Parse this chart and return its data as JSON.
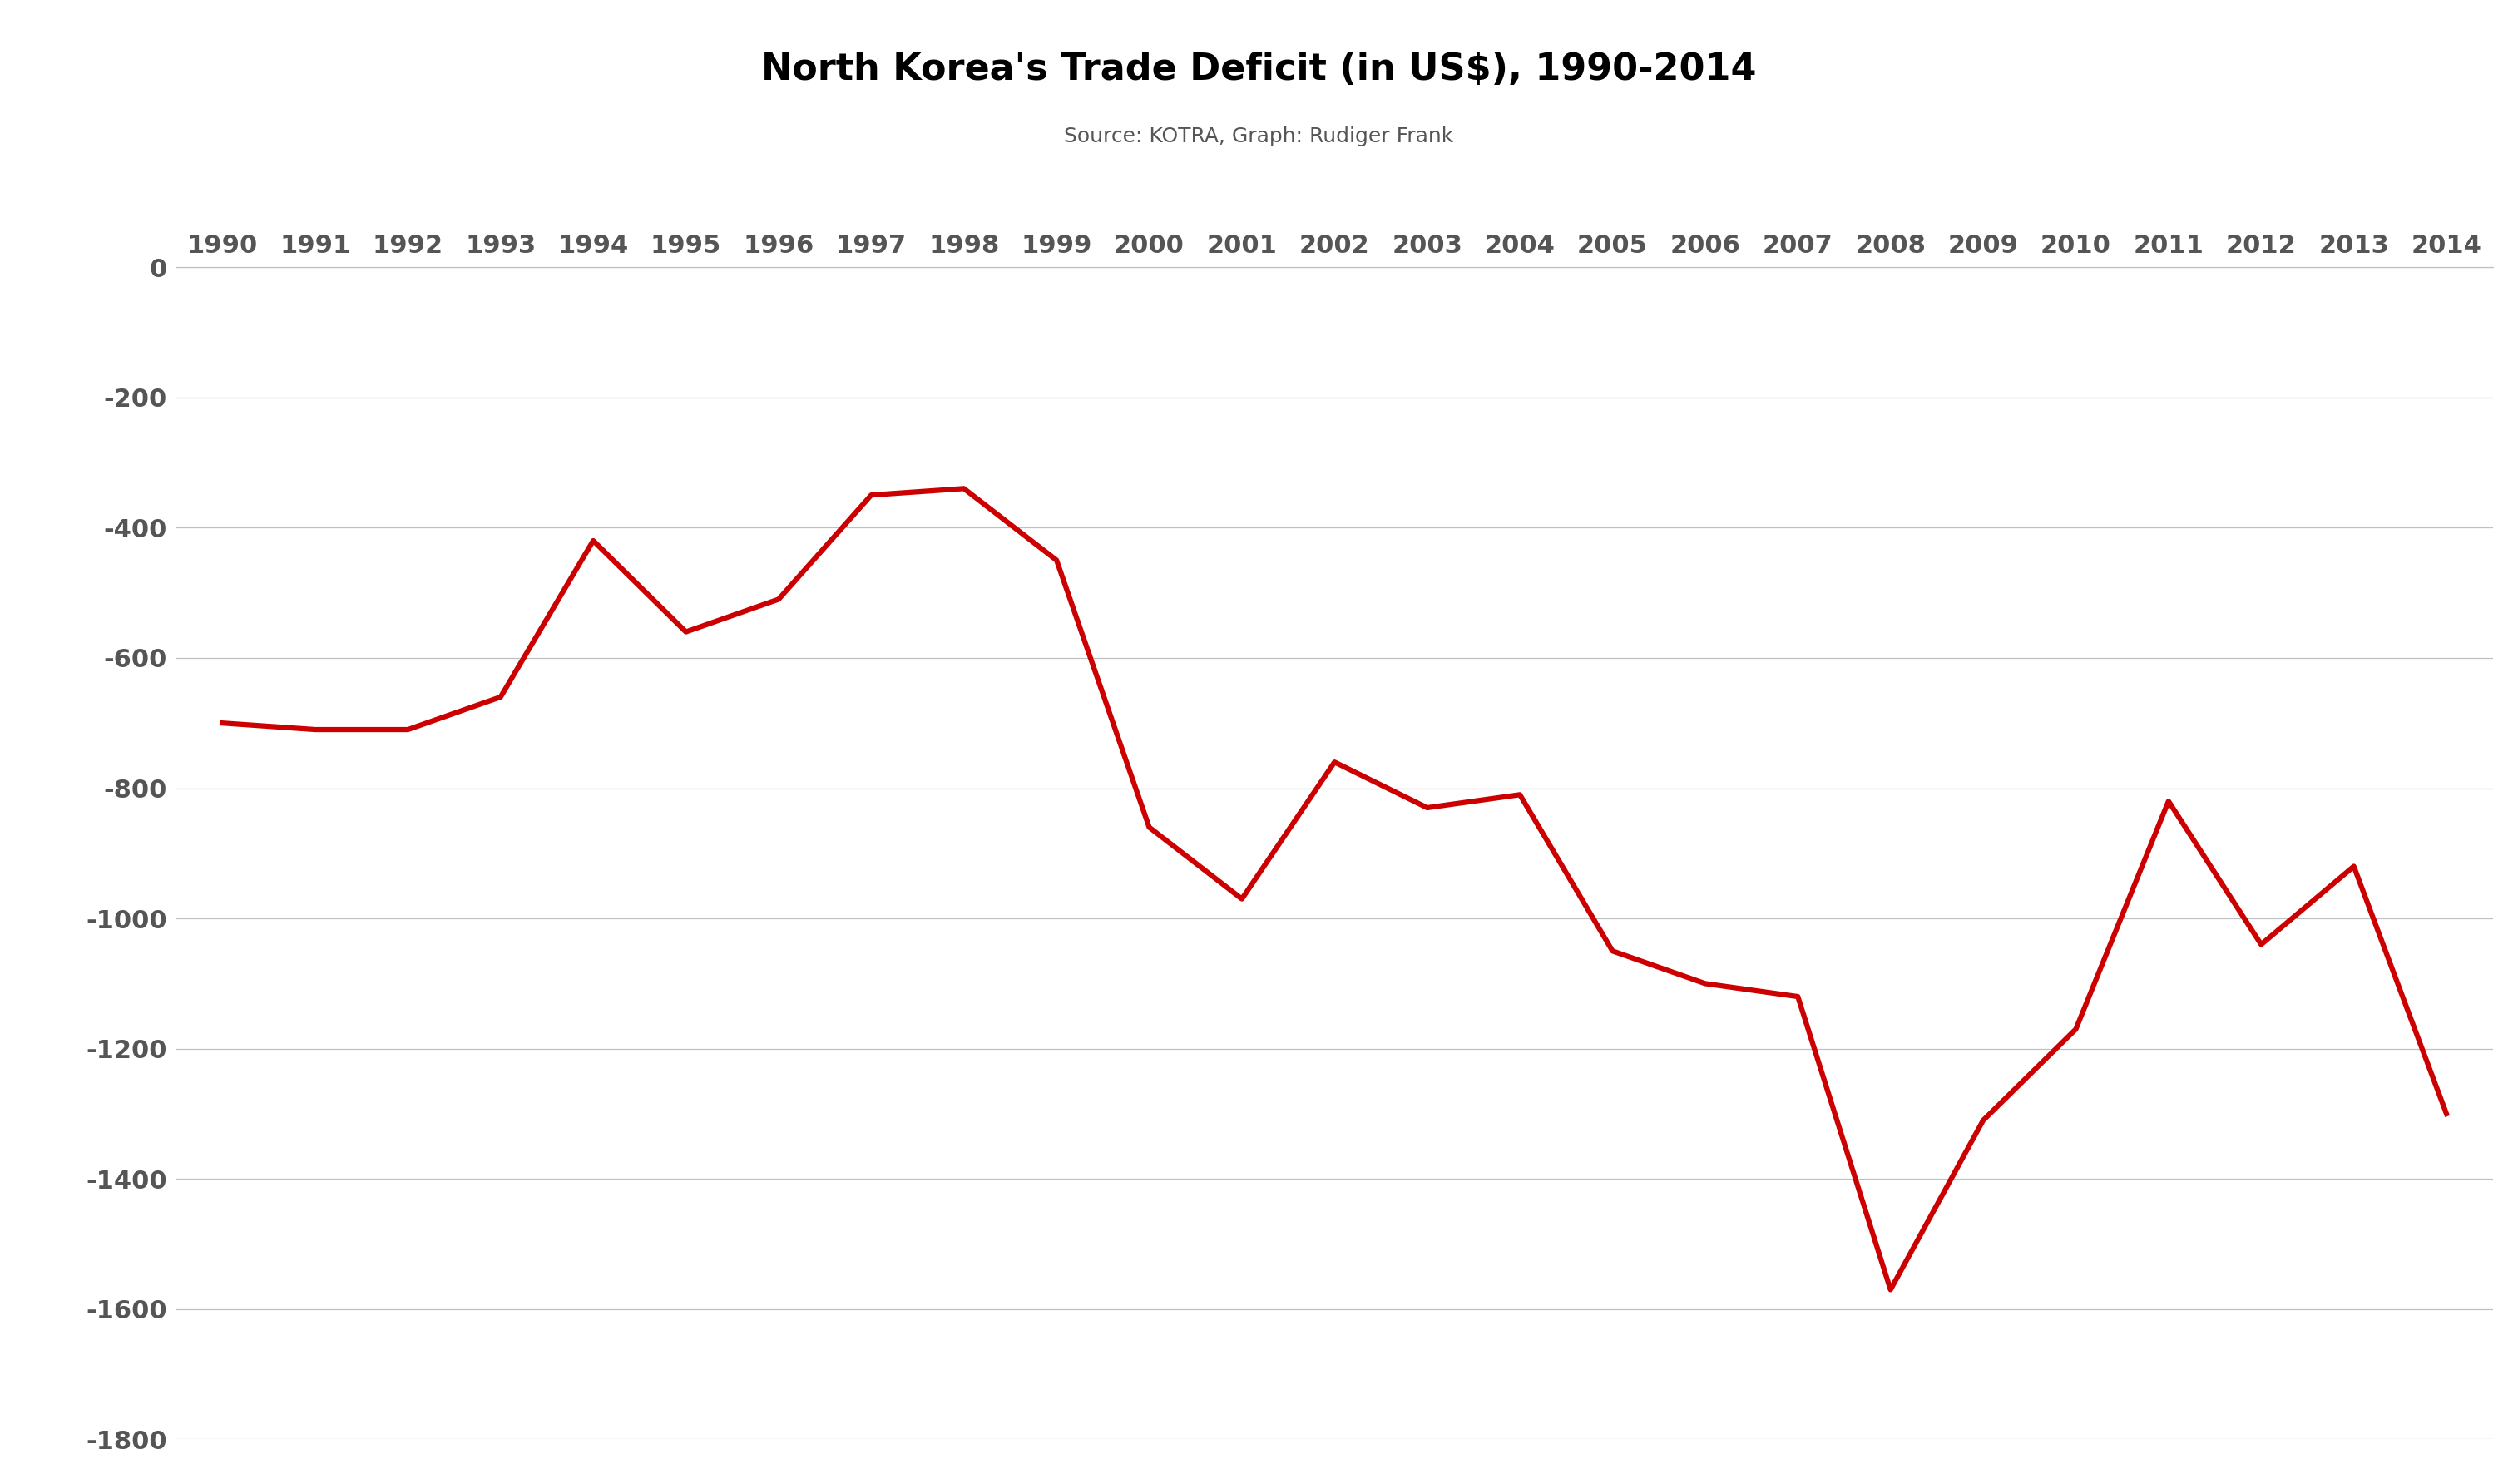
{
  "title": "North Korea's Trade Deficit (in US$), 1990-2014",
  "subtitle": "Source: KOTRA, Graph: Rudiger Frank",
  "years": [
    1990,
    1991,
    1992,
    1993,
    1994,
    1995,
    1996,
    1997,
    1998,
    1999,
    2000,
    2001,
    2002,
    2003,
    2004,
    2005,
    2006,
    2007,
    2008,
    2009,
    2010,
    2011,
    2012,
    2013,
    2014
  ],
  "values": [
    -700,
    -710,
    -710,
    -660,
    -420,
    -560,
    -510,
    -350,
    -340,
    -450,
    -860,
    -970,
    -760,
    -830,
    -810,
    -1050,
    -1100,
    -1120,
    -1570,
    -1310,
    -1170,
    -820,
    -1040,
    -920,
    -1300
  ],
  "line_color": "#cc0000",
  "line_width": 4.5,
  "background_color": "#ffffff",
  "grid_color": "#c0c0c0",
  "ylim": [
    -1800,
    0
  ],
  "yticks": [
    0,
    -200,
    -400,
    -600,
    -800,
    -1000,
    -1200,
    -1400,
    -1600,
    -1800
  ],
  "title_fontsize": 32,
  "subtitle_fontsize": 18,
  "tick_fontsize": 22,
  "tick_color": "#555555",
  "tick_fontweight": "bold"
}
